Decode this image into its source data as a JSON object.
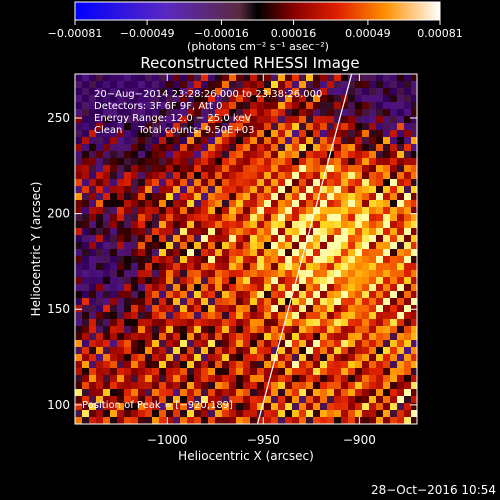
{
  "chart_data": {
    "type": "heatmap",
    "title": "Reconstructed RHESSI Image",
    "xlabel": "Heliocentric X (arcsec)",
    "ylabel": "Heliocentric Y (arcsec)",
    "xlim": [
      -1048,
      -870
    ],
    "ylim": [
      90,
      273
    ],
    "x_ticks": [
      -1000,
      -950,
      -900
    ],
    "x_tick_labels": [
      "−1000",
      "−950",
      "−900"
    ],
    "y_ticks": [
      100,
      150,
      200,
      250
    ],
    "y_tick_labels": [
      "100",
      "150",
      "200",
      "250"
    ],
    "colorbar": {
      "range": [
        -0.00081,
        0.00081
      ],
      "ticks": [
        -0.00081,
        -0.00049,
        -0.00016,
        0.00016,
        0.00049,
        0.00081
      ],
      "tick_labels": [
        "−0.00081",
        "−0.00049",
        "−0.00016",
        "0.00016",
        "0.00049",
        "0.00081"
      ],
      "unit_label": "(photons cm⁻² s⁻¹ asec⁻²)"
    },
    "annotations": [
      "20−Aug−2014 23:28:26.000 to 23:38:26.000",
      "Detectors: 3F 6F 9F, Att 0",
      "Energy Range: 12.0 − 25.0 keV",
      "Clean     Total counts: 9.50E+03"
    ],
    "peak_label": "Position of Peak = [−920,189]",
    "peak": [
      -920,
      189
    ],
    "limb_line": [
      [
        -953,
        90
      ],
      [
        -904,
        273
      ]
    ],
    "timestamp": "28−Oct−2016 10:54"
  }
}
